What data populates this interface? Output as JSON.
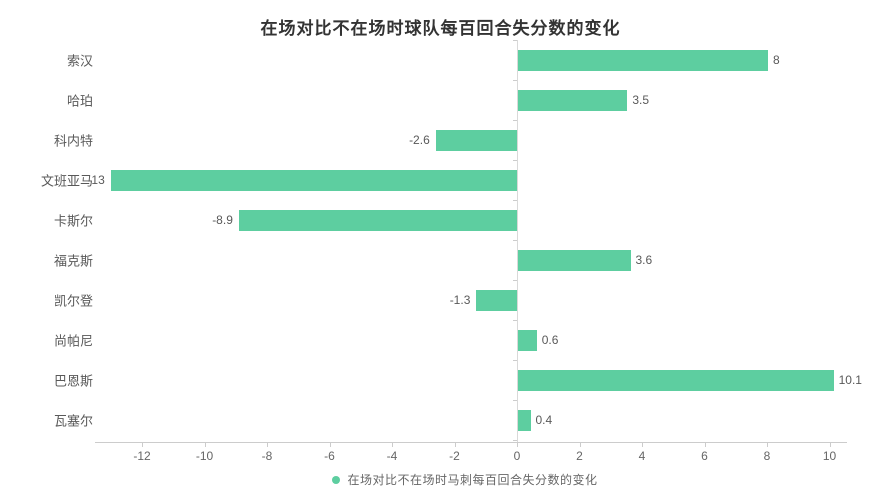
{
  "chart_data": {
    "type": "bar",
    "orientation": "horizontal",
    "title": "在场对比不在场时球队每百回合失分数的变化",
    "categories": [
      "索汉",
      "哈珀",
      "科内特",
      "文班亚马",
      "卡斯尔",
      "福克斯",
      "凯尔登",
      "尚帕尼",
      "巴恩斯",
      "瓦塞尔"
    ],
    "values": [
      8,
      3.5,
      -2.6,
      -13,
      -8.9,
      3.6,
      -1.3,
      0.6,
      10.1,
      0.4
    ],
    "value_labels": [
      "8",
      "3.5",
      "-2.6",
      "-13",
      "-8.9",
      "3.6",
      "-1.3",
      "0.6",
      "10.1",
      "0.4"
    ],
    "xticks": [
      -12,
      -10,
      -8,
      -6,
      -4,
      -2,
      0,
      2,
      4,
      6,
      8,
      10
    ],
    "xlim": [
      -13.5,
      10.6
    ],
    "grid": false,
    "legend": "在场对比不在场时马刺每百回合失分数的变化",
    "legend_position": "bottom",
    "bar_color": "#5dcea0"
  }
}
